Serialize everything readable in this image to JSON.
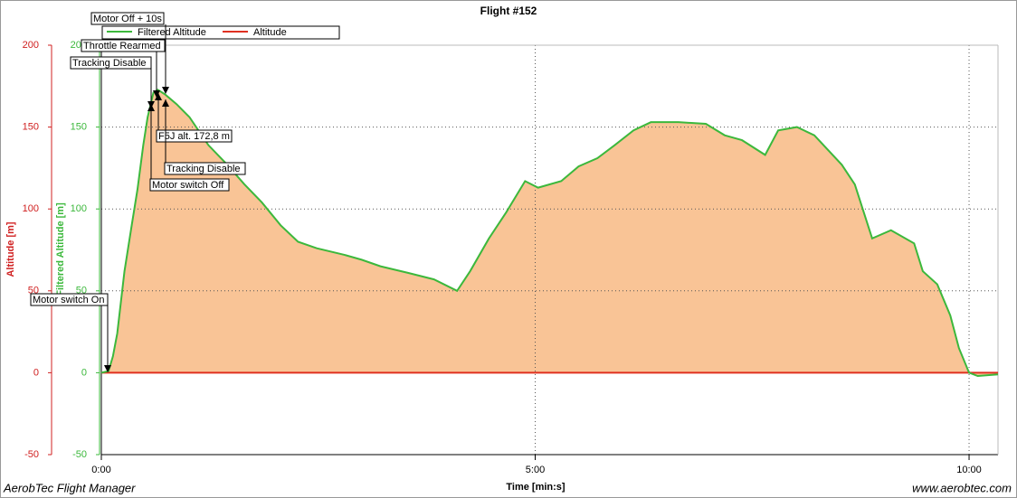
{
  "chart_data": {
    "type": "area",
    "title": "Flight #152",
    "x_label": "Time [min:s]",
    "y_label": "Altitude [m]",
    "y2_label": "Filtered Altitude [m]",
    "footer_left": "AerobTec Flight Manager",
    "footer_right": "www.aerobtec.com",
    "xlim": [
      0,
      620
    ],
    "xticks": [
      {
        "value": 0,
        "label": "0:00"
      },
      {
        "value": 300,
        "label": "5:00"
      },
      {
        "value": 600,
        "label": "10:00"
      }
    ],
    "ylim": [
      -50,
      200
    ],
    "yticks": [
      -50,
      0,
      50,
      100,
      150,
      200
    ],
    "grid": true,
    "series": [
      {
        "name": "Filtered Altitude",
        "color": "#3cb83c",
        "fill": "#f9c496",
        "x": [
          0,
          5,
          8,
          11,
          16,
          21,
          25,
          29,
          32,
          36,
          39,
          44,
          52,
          61,
          74,
          86,
          99,
          111,
          124,
          136,
          149,
          168,
          180,
          193,
          212,
          230,
          246,
          255,
          268,
          280,
          293,
          302,
          318,
          330,
          343,
          355,
          368,
          380,
          399,
          418,
          431,
          443,
          459,
          468,
          481,
          493,
          512,
          521,
          533,
          546,
          562,
          568,
          578,
          587,
          593,
          600,
          606,
          620
        ],
        "values": [
          0,
          1,
          10,
          24,
          62,
          90,
          112,
          139,
          156,
          171,
          172.8,
          170,
          164,
          156,
          139,
          128,
          115,
          104,
          90,
          80,
          76,
          72,
          69,
          65,
          61,
          57,
          50,
          62,
          82,
          98,
          117,
          113,
          117,
          126,
          131,
          139,
          148,
          153,
          153,
          152,
          145,
          142,
          133,
          148,
          150,
          145,
          127,
          115,
          82,
          87,
          79,
          62,
          54,
          35,
          15,
          0,
          -2,
          -1
        ]
      },
      {
        "name": "Altitude",
        "color": "#e03020",
        "x": [
          0,
          620
        ],
        "values": [
          0,
          0
        ]
      }
    ],
    "annotations": [
      {
        "text": "Motor Off + 10s"
      },
      {
        "text": "Throttle Rearmed"
      },
      {
        "text": "Tracking Disable"
      },
      {
        "text": "F5J alt. 172,8 m"
      },
      {
        "text": "Tracking Disable"
      },
      {
        "text": "Motor switch Off"
      },
      {
        "text": "Motor switch On"
      }
    ]
  }
}
